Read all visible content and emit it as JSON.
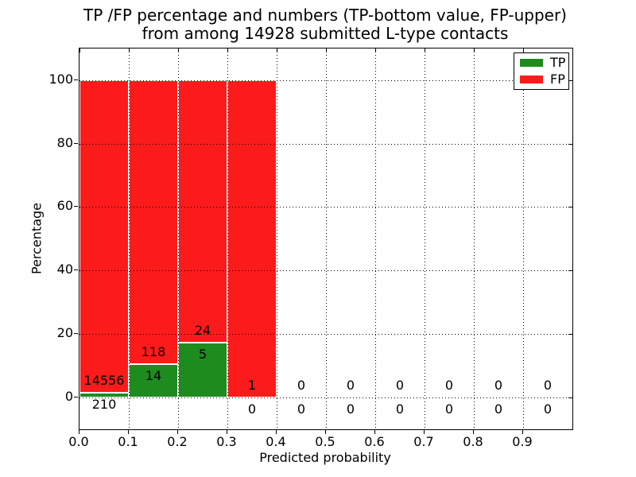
{
  "chart_data": {
    "type": "bar",
    "stacked": true,
    "title": "TP /FP percentage and numbers (TP-bottom value, FP-upper) from among 14928 submitted L-type contacts",
    "title_line1": "TP /FP percentage and numbers (TP-bottom value, FP-upper)",
    "title_line2": "from among 14928 submitted L-type contacts",
    "xlabel": "Predicted probability",
    "ylabel": "Percentage",
    "xlim": [
      0.0,
      1.0
    ],
    "ylim": [
      -10,
      110
    ],
    "x_tick_labels": [
      "0.0",
      "0.1",
      "0.2",
      "0.3",
      "0.4",
      "0.5",
      "0.6",
      "0.7",
      "0.8",
      "0.9"
    ],
    "y_tick_values": [
      0,
      20,
      40,
      60,
      80,
      100
    ],
    "grid": "dotted",
    "legend_position": "upper right",
    "total_contacts": 14928,
    "colors": {
      "tp": "#1e8b1e",
      "fp": "#fb1b1b"
    },
    "legend": [
      {
        "name": "TP",
        "color": "#1e8b1e"
      },
      {
        "name": "FP",
        "color": "#fb1b1b"
      }
    ],
    "bins": [
      {
        "x_start": 0.0,
        "x_end": 0.1,
        "tp": 210,
        "fp": 14556
      },
      {
        "x_start": 0.1,
        "x_end": 0.2,
        "tp": 14,
        "fp": 118
      },
      {
        "x_start": 0.2,
        "x_end": 0.3,
        "tp": 5,
        "fp": 24
      },
      {
        "x_start": 0.3,
        "x_end": 0.4,
        "tp": 0,
        "fp": 1
      },
      {
        "x_start": 0.4,
        "x_end": 0.5,
        "tp": 0,
        "fp": 0
      },
      {
        "x_start": 0.5,
        "x_end": 0.6,
        "tp": 0,
        "fp": 0
      },
      {
        "x_start": 0.6,
        "x_end": 0.7,
        "tp": 0,
        "fp": 0
      },
      {
        "x_start": 0.7,
        "x_end": 0.8,
        "tp": 0,
        "fp": 0
      },
      {
        "x_start": 0.8,
        "x_end": 0.9,
        "tp": 0,
        "fp": 0
      },
      {
        "x_start": 0.9,
        "x_end": 1.0,
        "tp": 0,
        "fp": 0
      }
    ]
  }
}
